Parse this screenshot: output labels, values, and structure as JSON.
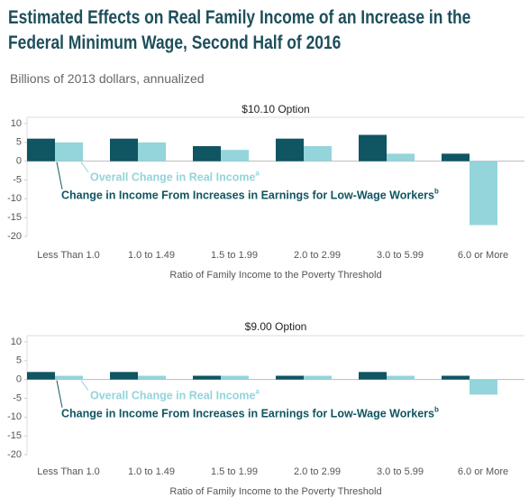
{
  "title": "Estimated Effects on Real Family Income of an Increase in the Federal Minimum Wage, Second Half of 2016",
  "subtitle": "Billions of 2013 dollars, annualized",
  "chart_data": [
    {
      "type": "bar",
      "title": "$10.10 Option",
      "x_label": "Ratio of Family Income to the Poverty Threshold",
      "categories": [
        "Less Than 1.0",
        "1.0 to 1.49",
        "1.5 to 1.99",
        "2.0 to 2.99",
        "3.0 to 5.99",
        "6.0 or More"
      ],
      "series": [
        {
          "name": "Change in Income From Increases in Earnings for Low-Wage Workers",
          "note": "b",
          "color": "#0f5562",
          "values": [
            6,
            6,
            4,
            6,
            7,
            2
          ]
        },
        {
          "name": "Overall Change in Real Income",
          "note": "a",
          "color": "#94d4db",
          "values": [
            5,
            5,
            3,
            4,
            2,
            -17
          ]
        }
      ],
      "ylim": [
        -20,
        10
      ],
      "yticks": [
        -20,
        -15,
        -10,
        -5,
        0,
        5,
        10
      ]
    },
    {
      "type": "bar",
      "title": "$9.00 Option",
      "x_label": "Ratio of Family Income to the Poverty Threshold",
      "categories": [
        "Less Than 1.0",
        "1.0 to 1.49",
        "1.5 to 1.99",
        "2.0 to 2.99",
        "3.0 to 5.99",
        "6.0 or More"
      ],
      "series": [
        {
          "name": "Change in Income From Increases in Earnings for Low-Wage Workers",
          "note": "b",
          "color": "#0f5562",
          "values": [
            2,
            2,
            1,
            1,
            2,
            1
          ]
        },
        {
          "name": "Overall Change in Real Income",
          "note": "a",
          "color": "#94d4db",
          "values": [
            1,
            1,
            1,
            1,
            1,
            -4
          ]
        }
      ],
      "ylim": [
        -20,
        10
      ],
      "yticks": [
        -20,
        -15,
        -10,
        -5,
        0,
        5,
        10
      ]
    }
  ]
}
